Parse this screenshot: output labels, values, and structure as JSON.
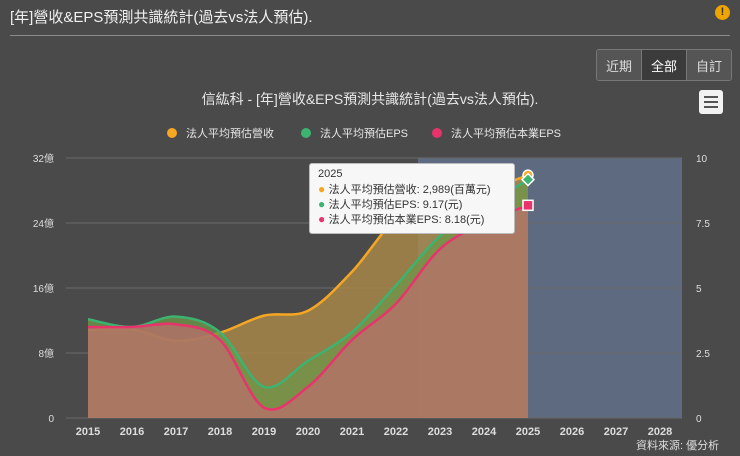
{
  "header": {
    "title": "[年]營收&EPS預測共識統計(過去vs法人預估)."
  },
  "range_buttons": [
    "近期",
    "全部",
    "自訂"
  ],
  "active_range": "全部",
  "credits": "資料來源: 優分析",
  "tooltip": {
    "year": "2025",
    "rows": [
      {
        "label": "法人平均預估營收: 2,989(百萬元)",
        "color": "#f5a623"
      },
      {
        "label": "法人平均預估EPS: 9.17(元)",
        "color": "#3cb371"
      },
      {
        "label": "法人平均預估本業EPS: 8.18(元)",
        "color": "#e8336d"
      }
    ]
  },
  "chart_data": {
    "type": "area",
    "title": "信紘科 - [年]營收&EPS預測共識統計(過去vs法人預估).",
    "categories": [
      "2015",
      "2016",
      "2017",
      "2018",
      "2019",
      "2020",
      "2021",
      "2022",
      "2023",
      "2024",
      "2025",
      "2026",
      "2027",
      "2028"
    ],
    "y_left": {
      "ticks": [
        "0",
        "8億",
        "16億",
        "24億",
        "32億"
      ],
      "range": [
        0,
        32
      ]
    },
    "y_right": {
      "ticks": [
        "0",
        "2.5",
        "5",
        "7.5",
        "10"
      ],
      "range": [
        0,
        10
      ]
    },
    "forecast_start": "2023",
    "legend_position": "top-center",
    "series": [
      {
        "name": "法人平均預估營收",
        "axis": "left",
        "color": "#f5a623",
        "x": [
          "2015",
          "2016",
          "2017",
          "2018",
          "2019",
          "2020",
          "2021",
          "2022",
          "2023",
          "2024",
          "2025"
        ],
        "values": [
          10.8,
          10.9,
          9.5,
          10.5,
          12.6,
          13.2,
          18,
          24.5,
          27,
          28,
          29.89
        ]
      },
      {
        "name": "法人平均預估EPS",
        "axis": "right",
        "color": "#3cb371",
        "x": [
          "2015",
          "2016",
          "2017",
          "2018",
          "2019",
          "2020",
          "2021",
          "2022",
          "2023",
          "2024",
          "2025"
        ],
        "values": [
          3.8,
          3.5,
          3.9,
          3.3,
          1.2,
          2.2,
          3.3,
          5.1,
          7.0,
          8.1,
          9.17
        ]
      },
      {
        "name": "法人平均預估本業EPS",
        "axis": "right",
        "color": "#e8336d",
        "x": [
          "2015",
          "2016",
          "2017",
          "2018",
          "2019",
          "2020",
          "2021",
          "2022",
          "2023",
          "2024",
          "2025"
        ],
        "values": [
          3.5,
          3.5,
          3.6,
          3.0,
          0.4,
          1.2,
          3.0,
          4.4,
          6.5,
          7.5,
          8.18
        ]
      }
    ]
  }
}
